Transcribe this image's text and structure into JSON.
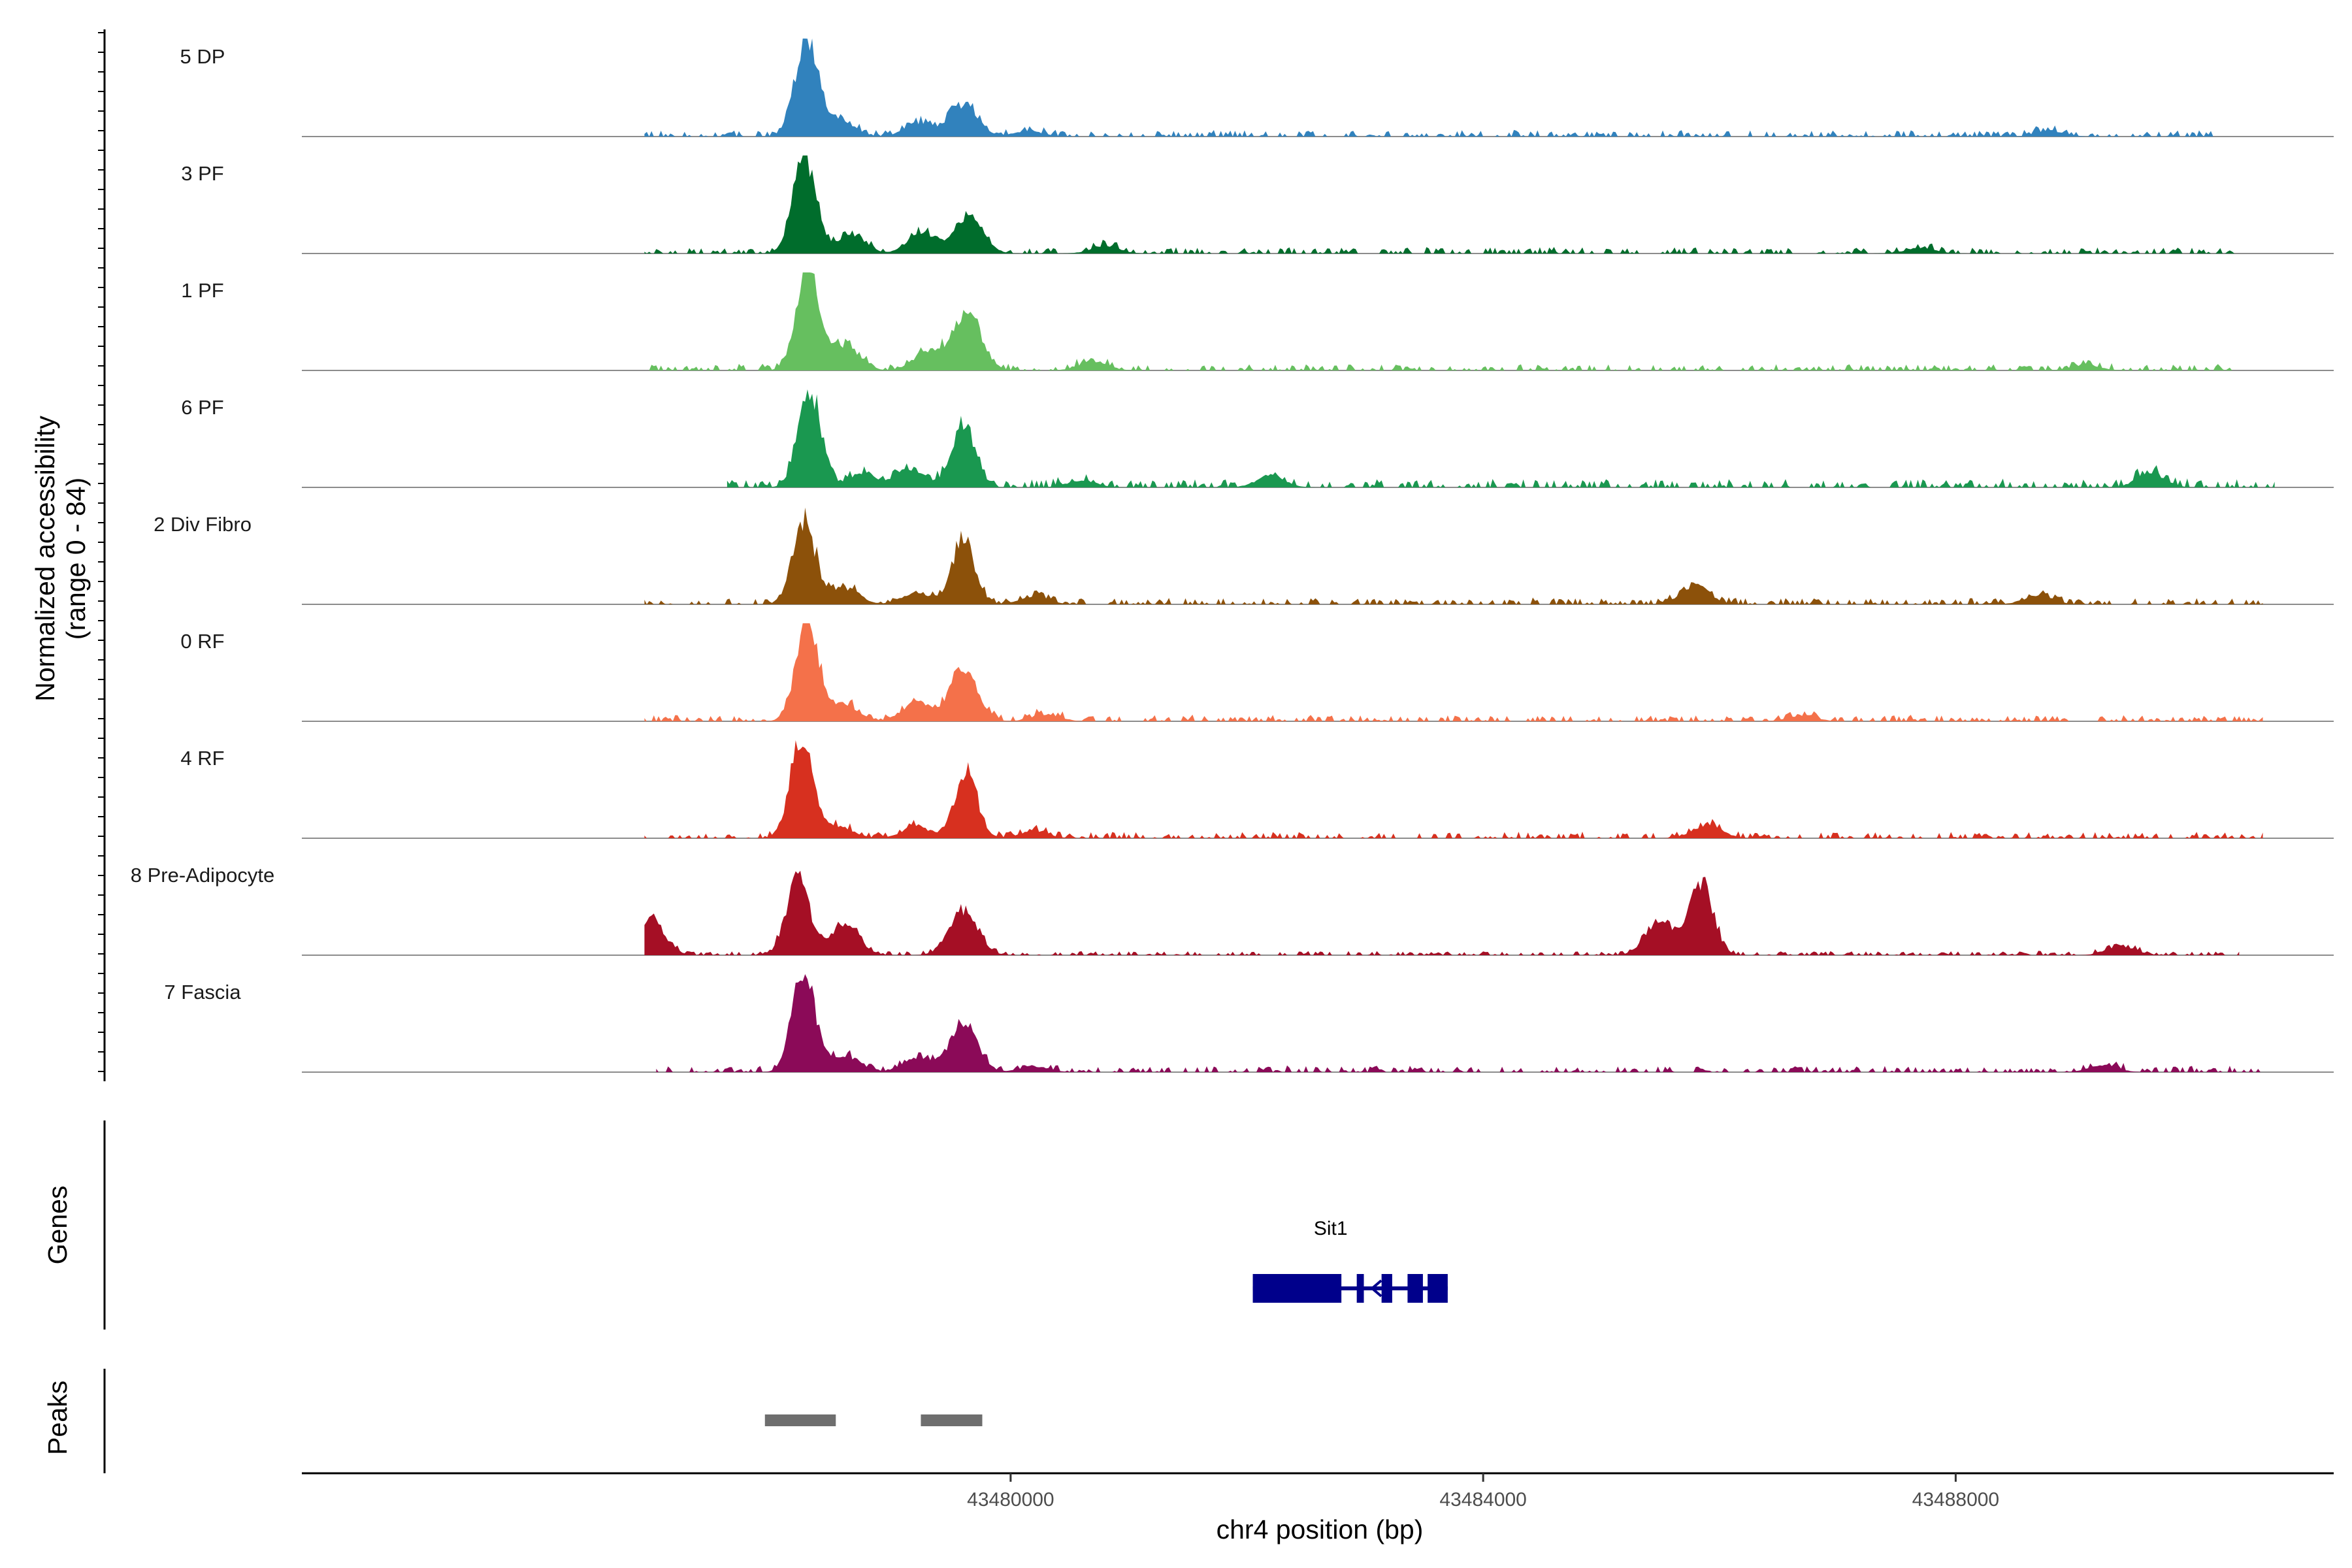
{
  "chart_data": {
    "type": "area",
    "region": "chr4:43476300-43490700",
    "y_axis": {
      "label_line1": "Normalized accessibility",
      "label_line2": "(range 0 - 84)",
      "ylim": [
        0,
        84
      ]
    },
    "x_axis": {
      "label": "chr4 position (bp)",
      "xlim": [
        43474000,
        43491200
      ],
      "ticks": [
        43480000,
        43484000,
        43488000
      ],
      "tick_labels": [
        "43480000",
        "43484000",
        "43488000"
      ]
    },
    "tracks": [
      {
        "name": "5 DP",
        "color": "#3182bd",
        "peaks": [
          {
            "x": 43478270,
            "y": 84
          },
          {
            "x": 43478550,
            "y": 14
          },
          {
            "x": 43479220,
            "y": 12
          },
          {
            "x": 43479600,
            "y": 28
          },
          {
            "x": 43480150,
            "y": 5
          },
          {
            "x": 43488800,
            "y": 5
          }
        ],
        "noise": 3,
        "start": 43476900,
        "end": 43490200
      },
      {
        "name": "3 PF",
        "color": "#006d2c",
        "peaks": [
          {
            "x": 43478250,
            "y": 84
          },
          {
            "x": 43478650,
            "y": 16
          },
          {
            "x": 43479250,
            "y": 18
          },
          {
            "x": 43479650,
            "y": 30
          },
          {
            "x": 43480800,
            "y": 6
          },
          {
            "x": 43487700,
            "y": 5
          }
        ],
        "noise": 3,
        "start": 43476900,
        "end": 43490400
      },
      {
        "name": "1 PF",
        "color": "#66bf5f",
        "peaks": [
          {
            "x": 43478280,
            "y": 84
          },
          {
            "x": 43478600,
            "y": 22
          },
          {
            "x": 43479300,
            "y": 16
          },
          {
            "x": 43479630,
            "y": 48
          },
          {
            "x": 43480700,
            "y": 8
          },
          {
            "x": 43489100,
            "y": 5
          }
        ],
        "noise": 3,
        "start": 43476900,
        "end": 43490400
      },
      {
        "name": "6 PF",
        "color": "#1a9850",
        "peaks": [
          {
            "x": 43478300,
            "y": 84
          },
          {
            "x": 43478750,
            "y": 12
          },
          {
            "x": 43479150,
            "y": 16
          },
          {
            "x": 43479600,
            "y": 54
          },
          {
            "x": 43480600,
            "y": 6
          },
          {
            "x": 43482200,
            "y": 10
          },
          {
            "x": 43489650,
            "y": 12
          }
        ],
        "noise": 4,
        "start": 43477600,
        "end": 43490700
      },
      {
        "name": "2 Div Fibro",
        "color": "#8c510a",
        "peaks": [
          {
            "x": 43478250,
            "y": 70
          },
          {
            "x": 43478600,
            "y": 14
          },
          {
            "x": 43479200,
            "y": 10
          },
          {
            "x": 43479600,
            "y": 56
          },
          {
            "x": 43480200,
            "y": 7
          },
          {
            "x": 43485800,
            "y": 16
          },
          {
            "x": 43488700,
            "y": 8
          }
        ],
        "noise": 3,
        "start": 43476900,
        "end": 43490600
      },
      {
        "name": "0 RF",
        "color": "#f4714a",
        "peaks": [
          {
            "x": 43478280,
            "y": 84
          },
          {
            "x": 43478600,
            "y": 14
          },
          {
            "x": 43479200,
            "y": 16
          },
          {
            "x": 43479600,
            "y": 44
          },
          {
            "x": 43480300,
            "y": 6
          },
          {
            "x": 43486700,
            "y": 5
          }
        ],
        "noise": 3,
        "start": 43476900,
        "end": 43490600
      },
      {
        "name": "4 RF",
        "color": "#d7301f",
        "peaks": [
          {
            "x": 43478230,
            "y": 84
          },
          {
            "x": 43478550,
            "y": 10
          },
          {
            "x": 43479200,
            "y": 10
          },
          {
            "x": 43479620,
            "y": 56
          },
          {
            "x": 43480200,
            "y": 6
          },
          {
            "x": 43485900,
            "y": 12
          }
        ],
        "noise": 3,
        "start": 43476900,
        "end": 43490600
      },
      {
        "name": "8 Pre-Adipocyte",
        "color": "#a50f25",
        "peaks": [
          {
            "x": 43476950,
            "y": 30
          },
          {
            "x": 43478200,
            "y": 68
          },
          {
            "x": 43478600,
            "y": 26
          },
          {
            "x": 43479600,
            "y": 40
          },
          {
            "x": 43485500,
            "y": 30
          },
          {
            "x": 43485850,
            "y": 64
          },
          {
            "x": 43489400,
            "y": 8
          }
        ],
        "noise": 2,
        "start": 43476900,
        "end": 43490400
      },
      {
        "name": "7 Fascia",
        "color": "#8b0a58",
        "peaks": [
          {
            "x": 43478250,
            "y": 84
          },
          {
            "x": 43478600,
            "y": 14
          },
          {
            "x": 43479200,
            "y": 12
          },
          {
            "x": 43479600,
            "y": 40
          },
          {
            "x": 43480200,
            "y": 5
          },
          {
            "x": 43489250,
            "y": 6
          }
        ],
        "noise": 3,
        "start": 43477000,
        "end": 43490600
      }
    ],
    "genes_panel": {
      "label": "Genes",
      "genes": [
        {
          "name": "Sit1",
          "color": "#00008b",
          "start": 43482050,
          "end": 43483700,
          "strand": "-",
          "exons": [
            [
              43482050,
              43482800
            ],
            [
              43482930,
              43482990
            ],
            [
              43483140,
              43483230
            ],
            [
              43483360,
              43483490
            ],
            [
              43483530,
              43483700
            ]
          ]
        }
      ]
    },
    "peaks_panel": {
      "label": "Peaks",
      "color": "#6e6e6e",
      "ranges": [
        [
          43477920,
          43478520
        ],
        [
          43479240,
          43479760
        ]
      ]
    }
  }
}
